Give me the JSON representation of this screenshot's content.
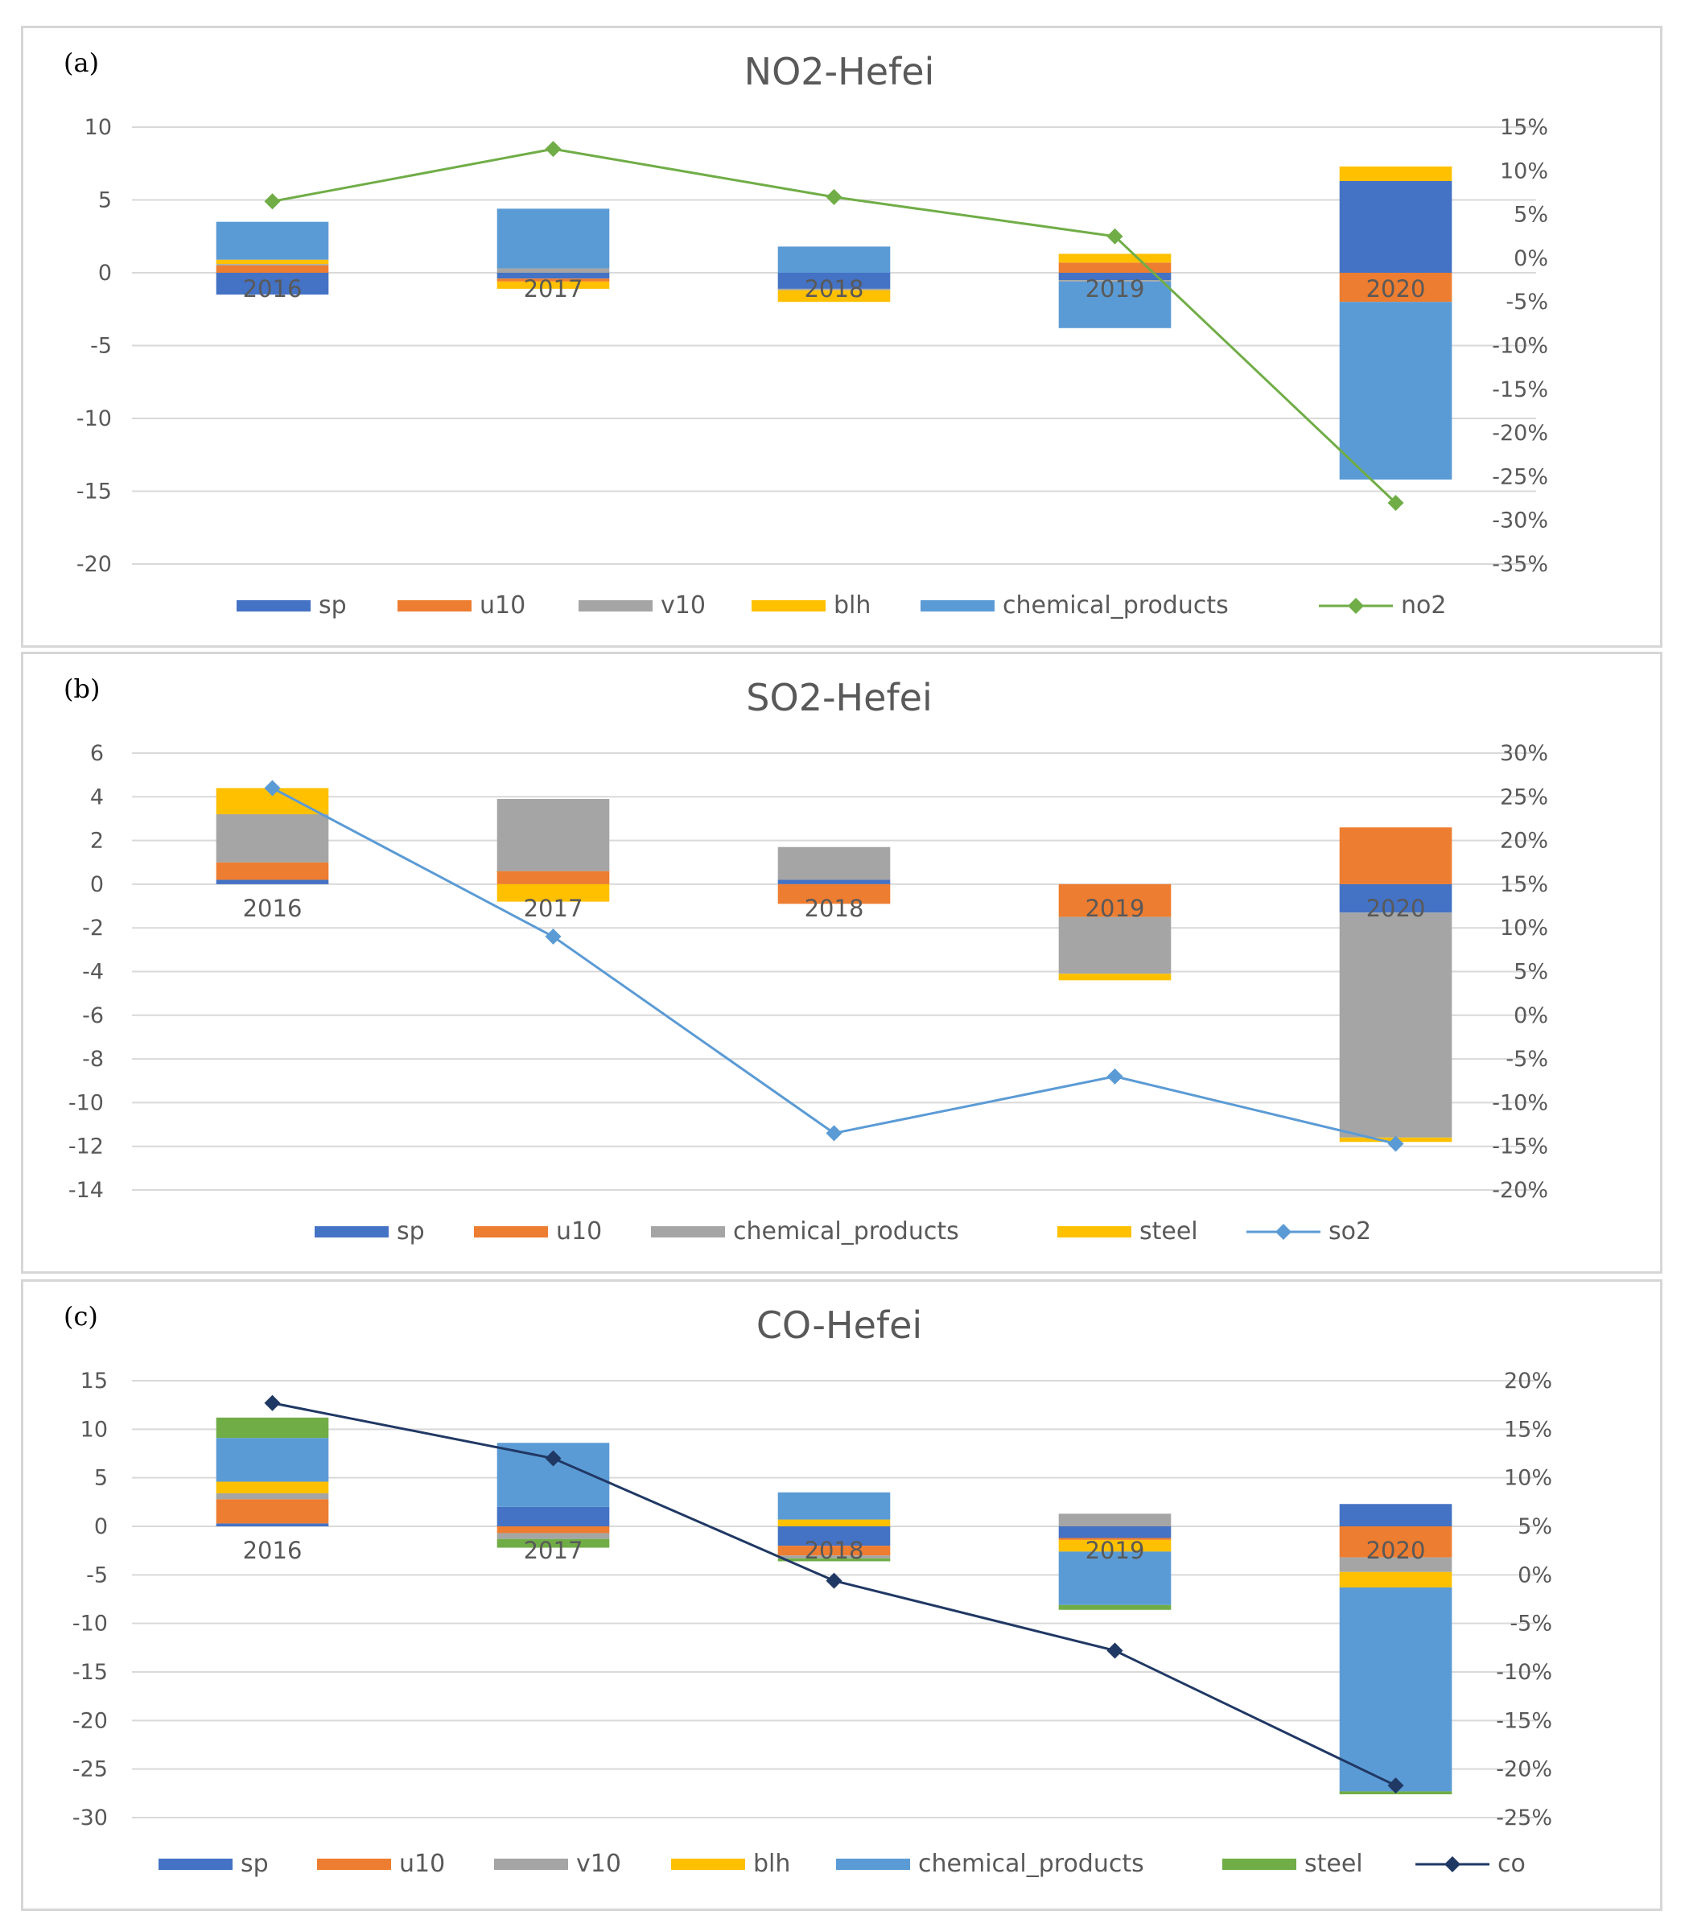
{
  "chart_data": [
    {
      "type": "bar",
      "panel_label": "(a)",
      "title": "NO2-Hefei",
      "categories": [
        "2016",
        "2017",
        "2018",
        "2019",
        "2020"
      ],
      "ylim": [
        -20,
        10
      ],
      "ystep": 5,
      "y2lim": [
        -0.35,
        0.15
      ],
      "y2step": 0.05,
      "y2_tick_labels": [
        "15%",
        "10%",
        "5%",
        "0%",
        "-5%",
        "-10%",
        "-15%",
        "-20%",
        "-25%",
        "-30%",
        "-35%"
      ],
      "y_tick_labels": [
        "10",
        "5",
        "0",
        "-5",
        "-10",
        "-15",
        "-20"
      ],
      "series": [
        {
          "name": "sp",
          "color": "#4472c4",
          "values": [
            -1.5,
            -0.4,
            -1.1,
            -0.5,
            6.3
          ]
        },
        {
          "name": "u10",
          "color": "#ed7d31",
          "values": [
            0.5,
            -0.2,
            0.0,
            0.7,
            -2.0
          ]
        },
        {
          "name": "v10",
          "color": "#a5a5a5",
          "values": [
            0.1,
            0.3,
            -0.1,
            -0.1,
            0.0
          ]
        },
        {
          "name": "blh",
          "color": "#ffc000",
          "values": [
            0.3,
            -0.5,
            -0.8,
            0.6,
            1.0
          ]
        },
        {
          "name": "chemical_products",
          "color": "#5b9bd5",
          "values": [
            2.6,
            4.1,
            1.8,
            -3.2,
            -12.2
          ]
        }
      ],
      "line": {
        "name": "no2",
        "color": "#70ad47",
        "marker": "diamond",
        "values": [
          0.065,
          0.125,
          0.07,
          0.025,
          -0.28
        ]
      },
      "legend_position": "bottom"
    },
    {
      "type": "bar",
      "panel_label": "(b)",
      "title": "SO2-Hefei",
      "categories": [
        "2016",
        "2017",
        "2018",
        "2019",
        "2020"
      ],
      "ylim": [
        -14,
        6
      ],
      "ystep": 2,
      "y2lim": [
        -0.2,
        0.3
      ],
      "y2step": 0.05,
      "y2_tick_labels": [
        "30%",
        "25%",
        "20%",
        "15%",
        "10%",
        "5%",
        "0%",
        "-5%",
        "-10%",
        "-15%",
        "-20%"
      ],
      "y_tick_labels": [
        "6",
        "4",
        "2",
        "0",
        "-2",
        "-4",
        "-6",
        "-8",
        "-10",
        "-12",
        "-14"
      ],
      "series": [
        {
          "name": "sp",
          "color": "#4472c4",
          "values": [
            0.2,
            0.0,
            0.2,
            0.0,
            -1.3
          ]
        },
        {
          "name": "u10",
          "color": "#ed7d31",
          "values": [
            0.8,
            0.6,
            -0.9,
            -1.5,
            2.6
          ]
        },
        {
          "name": "chemical_products",
          "color": "#a5a5a5",
          "values": [
            2.2,
            3.3,
            1.5,
            -2.6,
            -10.3
          ]
        },
        {
          "name": "steel",
          "color": "#ffc000",
          "values": [
            1.2,
            -0.8,
            0.0,
            -0.3,
            -0.2
          ]
        }
      ],
      "line": {
        "name": "so2",
        "color": "#5b9bd5",
        "marker": "diamond",
        "values": [
          0.26,
          0.09,
          -0.135,
          -0.07,
          -0.147
        ]
      },
      "legend_position": "bottom"
    },
    {
      "type": "bar",
      "panel_label": "(c)",
      "title": "CO-Hefei",
      "categories": [
        "2016",
        "2017",
        "2018",
        "2019",
        "2020"
      ],
      "ylim": [
        -30,
        15
      ],
      "ystep": 5,
      "y2lim": [
        -0.25,
        0.2
      ],
      "y2step": 0.05,
      "y2_tick_labels": [
        "20%",
        "15%",
        "10%",
        "5%",
        "0%",
        "-5%",
        "-10%",
        "-15%",
        "-20%",
        "-25%"
      ],
      "y_tick_labels": [
        "15",
        "10",
        "5",
        "0",
        "-5",
        "-10",
        "-15",
        "-20",
        "-25",
        "-30"
      ],
      "series": [
        {
          "name": "sp",
          "color": "#4472c4",
          "values": [
            0.3,
            2.0,
            -2.0,
            -1.2,
            2.3
          ]
        },
        {
          "name": "u10",
          "color": "#ed7d31",
          "values": [
            2.5,
            -0.7,
            -1.0,
            -0.2,
            -3.2
          ]
        },
        {
          "name": "v10",
          "color": "#a5a5a5",
          "values": [
            0.6,
            -0.6,
            -0.3,
            1.3,
            -1.5
          ]
        },
        {
          "name": "blh",
          "color": "#ffc000",
          "values": [
            1.2,
            0.0,
            0.7,
            -1.2,
            -1.6
          ]
        },
        {
          "name": "chemical_products",
          "color": "#5b9bd5",
          "values": [
            4.5,
            6.6,
            2.8,
            -5.5,
            -21.0
          ]
        },
        {
          "name": "steel",
          "color": "#70ad47",
          "values": [
            2.1,
            -0.9,
            -0.3,
            -0.5,
            -0.3
          ]
        }
      ],
      "line": {
        "name": "co",
        "color": "#203864",
        "marker": "diamond",
        "values": [
          0.177,
          0.12,
          -0.006,
          -0.078,
          -0.217
        ]
      },
      "legend_position": "bottom"
    }
  ]
}
